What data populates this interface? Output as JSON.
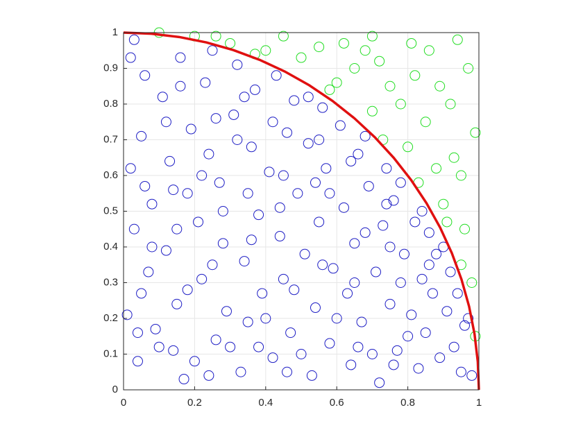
{
  "chart_data": {
    "type": "scatter",
    "xlim": [
      0,
      1
    ],
    "ylim": [
      0,
      1
    ],
    "xticks": [
      0,
      0.2,
      0.4,
      0.6,
      0.8,
      1
    ],
    "yticks": [
      0,
      0.1,
      0.2,
      0.3,
      0.4,
      0.5,
      0.6,
      0.7,
      0.8,
      0.9,
      1
    ],
    "grid": true,
    "series": [
      {
        "mode": "markers",
        "color": "#1c1cc4",
        "x": [
          0.02,
          0.05,
          0.03,
          0.01,
          0.04,
          0.07,
          0.02,
          0.06,
          0.08,
          0.09,
          0.05,
          0.03,
          0.11,
          0.13,
          0.12,
          0.14,
          0.16,
          0.18,
          0.15,
          0.19,
          0.17,
          0.21,
          0.23,
          0.22,
          0.24,
          0.26,
          0.25,
          0.28,
          0.27,
          0.29,
          0.31,
          0.33,
          0.32,
          0.34,
          0.36,
          0.35,
          0.38,
          0.37,
          0.39,
          0.41,
          0.42,
          0.43,
          0.44,
          0.46,
          0.45,
          0.47,
          0.49,
          0.48,
          0.51,
          0.52,
          0.53,
          0.54,
          0.56,
          0.55,
          0.57,
          0.58,
          0.59,
          0.61,
          0.62,
          0.63,
          0.64,
          0.66,
          0.65,
          0.67,
          0.69,
          0.68,
          0.71,
          0.72,
          0.73,
          0.74,
          0.75,
          0.76,
          0.77,
          0.79,
          0.78,
          0.81,
          0.82,
          0.83,
          0.84,
          0.86,
          0.85,
          0.87,
          0.89,
          0.88,
          0.91,
          0.93,
          0.92,
          0.95,
          0.96,
          0.98,
          0.94,
          0.1,
          0.2,
          0.3,
          0.4,
          0.5,
          0.6,
          0.7,
          0.8,
          0.15,
          0.25,
          0.35,
          0.45,
          0.55,
          0.65,
          0.75,
          0.12,
          0.22,
          0.32,
          0.42,
          0.52,
          0.08,
          0.18,
          0.28,
          0.38,
          0.48,
          0.58,
          0.68,
          0.78,
          0.06,
          0.16,
          0.26,
          0.36,
          0.46,
          0.56,
          0.66,
          0.76,
          0.86,
          0.04,
          0.14,
          0.24,
          0.34,
          0.44,
          0.54,
          0.64,
          0.74,
          0.84,
          0.9,
          0.97
        ],
        "values": [
          0.93,
          0.71,
          0.45,
          0.21,
          0.08,
          0.33,
          0.62,
          0.88,
          0.52,
          0.17,
          0.27,
          0.98,
          0.82,
          0.64,
          0.39,
          0.11,
          0.93,
          0.55,
          0.24,
          0.73,
          0.03,
          0.47,
          0.86,
          0.31,
          0.66,
          0.14,
          0.95,
          0.41,
          0.58,
          0.22,
          0.77,
          0.05,
          0.91,
          0.36,
          0.68,
          0.19,
          0.49,
          0.84,
          0.27,
          0.61,
          0.09,
          0.88,
          0.43,
          0.72,
          0.31,
          0.16,
          0.55,
          0.81,
          0.38,
          0.69,
          0.04,
          0.23,
          0.79,
          0.47,
          0.62,
          0.13,
          0.34,
          0.74,
          0.51,
          0.27,
          0.07,
          0.66,
          0.41,
          0.19,
          0.57,
          0.71,
          0.33,
          0.02,
          0.46,
          0.62,
          0.24,
          0.53,
          0.11,
          0.38,
          0.58,
          0.21,
          0.47,
          0.06,
          0.31,
          0.44,
          0.16,
          0.27,
          0.09,
          0.38,
          0.22,
          0.12,
          0.33,
          0.05,
          0.18,
          0.04,
          0.27,
          0.12,
          0.08,
          0.12,
          0.2,
          0.1,
          0.2,
          0.1,
          0.15,
          0.45,
          0.35,
          0.55,
          0.6,
          0.7,
          0.3,
          0.4,
          0.75,
          0.6,
          0.7,
          0.75,
          0.82,
          0.4,
          0.28,
          0.5,
          0.12,
          0.28,
          0.55,
          0.44,
          0.3,
          0.57,
          0.85,
          0.76,
          0.42,
          0.05,
          0.35,
          0.12,
          0.07,
          0.35,
          0.16,
          0.56,
          0.04,
          0.82,
          0.51,
          0.58,
          0.64,
          0.52,
          0.5,
          0.4,
          0.2
        ]
      },
      {
        "mode": "markers",
        "color": "#22dd22",
        "x": [
          0.1,
          0.2,
          0.3,
          0.4,
          0.5,
          0.6,
          0.7,
          0.8,
          0.9,
          0.98,
          0.55,
          0.65,
          0.75,
          0.85,
          0.95,
          0.45,
          0.62,
          0.72,
          0.82,
          0.92,
          0.99,
          0.88,
          0.78,
          0.68,
          0.96,
          0.93,
          0.86,
          0.97,
          0.73,
          0.83,
          0.91,
          0.99,
          0.95,
          0.58,
          0.37,
          0.26,
          0.81,
          0.94,
          0.7,
          0.89
        ],
        "values": [
          1.0,
          0.99,
          0.97,
          0.95,
          0.93,
          0.86,
          0.78,
          0.68,
          0.52,
          0.3,
          0.96,
          0.9,
          0.85,
          0.75,
          0.6,
          0.99,
          0.97,
          0.92,
          0.88,
          0.8,
          0.72,
          0.62,
          0.8,
          0.95,
          0.45,
          0.65,
          0.95,
          0.9,
          0.7,
          0.58,
          0.47,
          0.15,
          0.35,
          0.84,
          0.94,
          0.99,
          0.97,
          0.98,
          0.99,
          0.85
        ]
      },
      {
        "mode": "lines",
        "color": "#e01010",
        "x": [
          1,
          0.9969,
          0.9877,
          0.9724,
          0.9511,
          0.9239,
          0.891,
          0.8526,
          0.809,
          0.7604,
          0.7071,
          0.6494,
          0.5878,
          0.5225,
          0.454,
          0.3827,
          0.309,
          0.2334,
          0.1564,
          0.0785,
          0
        ],
        "values": [
          0,
          0.0785,
          0.1564,
          0.2334,
          0.309,
          0.3827,
          0.454,
          0.5225,
          0.5878,
          0.6494,
          0.7071,
          0.7604,
          0.809,
          0.8526,
          0.891,
          0.9239,
          0.9511,
          0.9724,
          0.9877,
          0.9969,
          1
        ]
      }
    ]
  }
}
